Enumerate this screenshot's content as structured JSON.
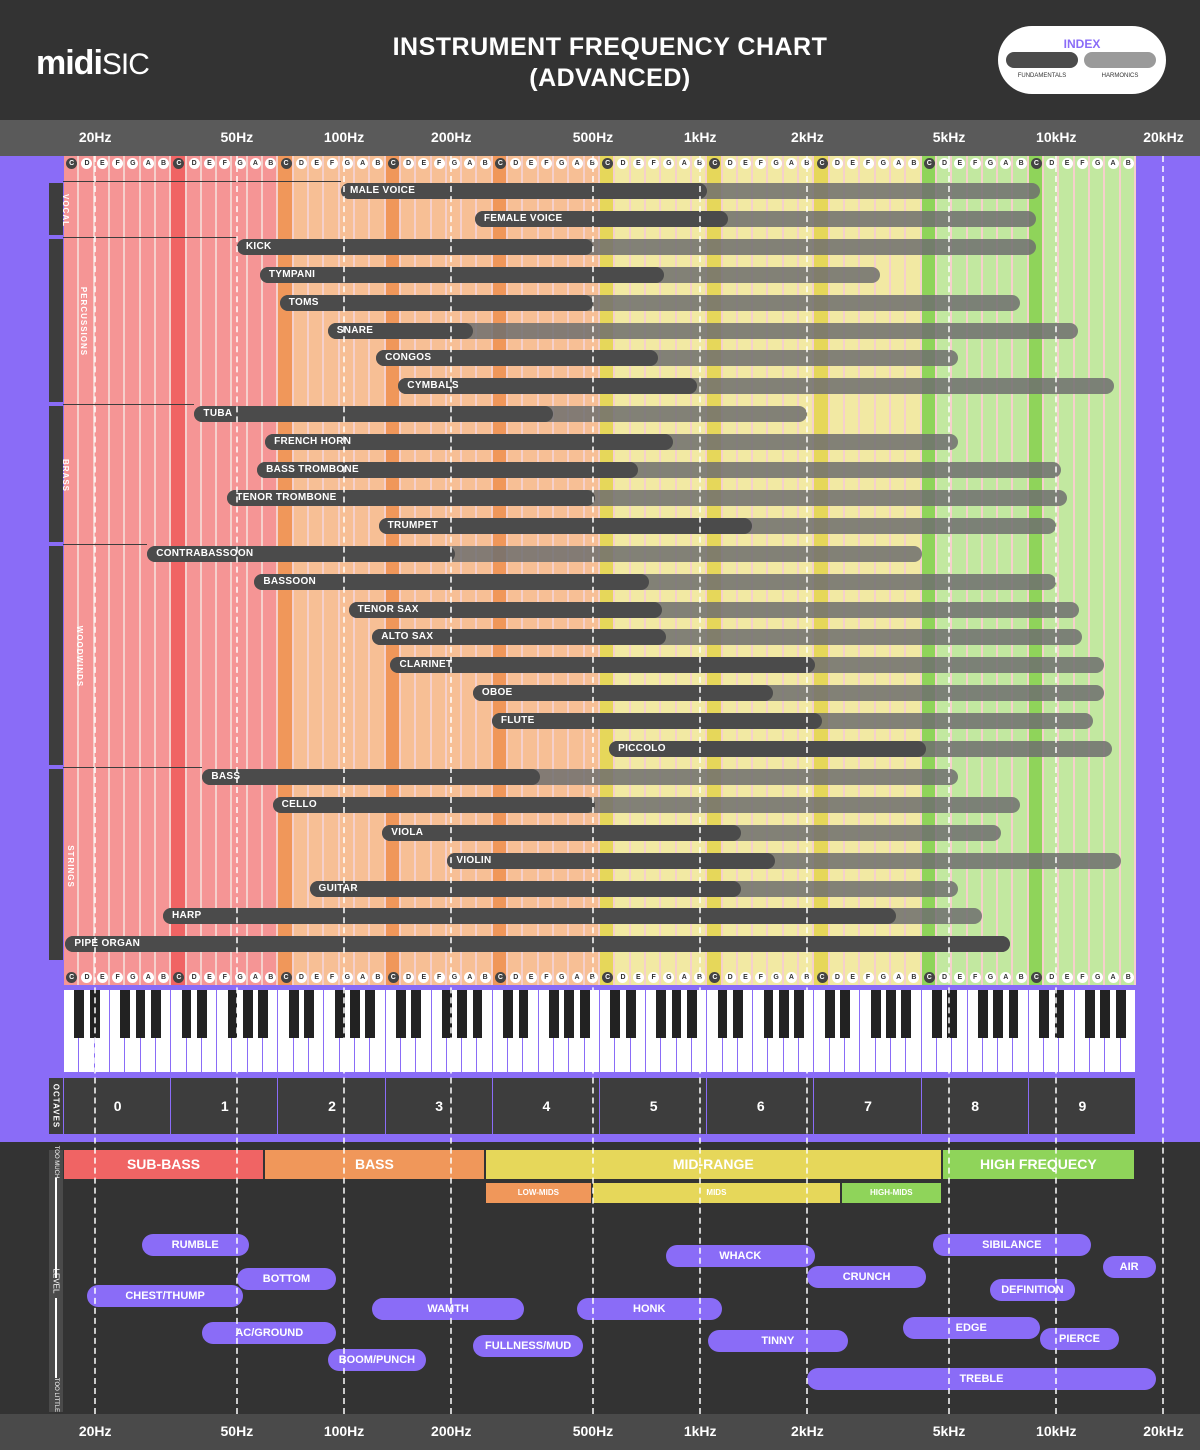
{
  "header": {
    "logo_bold": "midi",
    "logo_light": "SIC",
    "title_line1": "INSTRUMENT FREQUENCY CHART",
    "title_line2": "(ADVANCED)"
  },
  "index": {
    "title": "INDEX",
    "fund_label": "FUNDAMENTALS",
    "harm_label": "HARMONICS",
    "fund_color": "#4b4b4b",
    "harm_color": "#9a9a9a"
  },
  "colors": {
    "accent": "#8a6cf7",
    "sub_bass": "#f06464",
    "bass": "#f0975a",
    "mid_range": "#e6d75a",
    "high": "#8fd45a"
  },
  "octaves_label": "OCTAVES",
  "chart_data": {
    "type": "range-bar",
    "title": "INSTRUMENT FREQUENCY CHART (ADVANCED)",
    "xscale": "log",
    "xunit": "Hz",
    "xlim": [
      16.35,
      16744
    ],
    "ticks": [
      {
        "label": "20Hz",
        "v": 20
      },
      {
        "label": "50Hz",
        "v": 50
      },
      {
        "label": "100Hz",
        "v": 100
      },
      {
        "label": "200Hz",
        "v": 200
      },
      {
        "label": "500Hz",
        "v": 500
      },
      {
        "label": "1kHz",
        "v": 1000
      },
      {
        "label": "2kHz",
        "v": 2000
      },
      {
        "label": "5kHz",
        "v": 5000
      },
      {
        "label": "10kHz",
        "v": 10000
      },
      {
        "label": "20kHz",
        "v": 20000
      }
    ],
    "note_names": [
      "C",
      "D",
      "E",
      "F",
      "G",
      "A",
      "B"
    ],
    "octaves": [
      "0",
      "1",
      "2",
      "3",
      "4",
      "5",
      "6",
      "7",
      "8",
      "9"
    ],
    "categories": [
      {
        "name": "VOCAL",
        "instruments": [
          {
            "name": "MALE VOICE",
            "fund": [
              98,
              1047
            ],
            "harm_end": 9000
          },
          {
            "name": "FEMALE VOICE",
            "fund": [
              233,
              1200
            ],
            "harm_end": 8800
          }
        ]
      },
      {
        "name": "PERCUSSIONS",
        "instruments": [
          {
            "name": "KICK",
            "fund": [
              50,
              500
            ],
            "harm_end": 8800
          },
          {
            "name": "TYMPANI",
            "fund": [
              58,
              790
            ],
            "harm_end": 3200
          },
          {
            "name": "TOMS",
            "fund": [
              66,
              500
            ],
            "harm_end": 7900
          },
          {
            "name": "SNARE",
            "fund": [
              90,
              230
            ],
            "harm_end": 11500
          },
          {
            "name": "CONGOS",
            "fund": [
              123,
              760
            ],
            "harm_end": 5300
          },
          {
            "name": "CYMBALS",
            "fund": [
              142,
              980
            ],
            "harm_end": 14500
          }
        ]
      },
      {
        "name": "BRASS",
        "instruments": [
          {
            "name": "TUBA",
            "fund": [
              38,
              385
            ],
            "harm_end": 2000
          },
          {
            "name": "FRENCH HORN",
            "fund": [
              60,
              840
            ],
            "harm_end": 5300
          },
          {
            "name": "BASS TROMBONE",
            "fund": [
              57,
              670
            ],
            "harm_end": 10300
          },
          {
            "name": "TENOR TROMBONE",
            "fund": [
              47,
              505
            ],
            "harm_end": 10700
          },
          {
            "name": "TRUMPET",
            "fund": [
              125,
              1400
            ],
            "harm_end": 10000
          }
        ]
      },
      {
        "name": "WOODWINDS",
        "instruments": [
          {
            "name": "CONTRABASSOON",
            "fund": [
              28,
              205
            ],
            "harm_end": 4200
          },
          {
            "name": "BASSOON",
            "fund": [
              56,
              720
            ],
            "harm_end": 10000
          },
          {
            "name": "TENOR SAX",
            "fund": [
              103,
              780
            ],
            "harm_end": 11600
          },
          {
            "name": "ALTO SAX",
            "fund": [
              120,
              800
            ],
            "harm_end": 11800
          },
          {
            "name": "CLARINET",
            "fund": [
              135,
              2100
            ],
            "harm_end": 13600
          },
          {
            "name": "OBOE",
            "fund": [
              230,
              1600
            ],
            "harm_end": 13600
          },
          {
            "name": "FLUTE",
            "fund": [
              260,
              2200
            ],
            "harm_end": 12700
          },
          {
            "name": "PICCOLO",
            "fund": [
              555,
              4300
            ],
            "harm_end": 14300
          }
        ]
      },
      {
        "name": "STRINGS",
        "instruments": [
          {
            "name": "BASS",
            "fund": [
              40,
              355
            ],
            "harm_end": 5300
          },
          {
            "name": "CELLO",
            "fund": [
              63,
              505
            ],
            "harm_end": 7900
          },
          {
            "name": "VIOLA",
            "fund": [
              128,
              1300
            ],
            "harm_end": 7000
          },
          {
            "name": "VIOLIN",
            "fund": [
              195,
              1620
            ],
            "harm_end": 15200
          },
          {
            "name": "GUITAR",
            "fund": [
              80,
              1300
            ],
            "harm_end": 5300
          },
          {
            "name": "HARP",
            "fund": [
              31,
              3550
            ],
            "harm_end": 6200
          },
          {
            "name": "PIPE ORGAN",
            "fund": [
              16.5,
              7400
            ],
            "harm_end": 7400
          }
        ]
      }
    ],
    "bands": [
      {
        "name": "SUB-BASS",
        "range": [
          16.35,
          60
        ]
      },
      {
        "name": "BASS",
        "range": [
          60,
          250
        ]
      },
      {
        "name": "MID-RANGE",
        "range": [
          250,
          4800
        ]
      },
      {
        "name": "HIGH FREQUECY",
        "range": [
          4800,
          16744
        ]
      }
    ],
    "sub_bands": [
      {
        "name": "LOW-MIDS",
        "range": [
          250,
          500
        ]
      },
      {
        "name": "MIDS",
        "range": [
          500,
          2500
        ]
      },
      {
        "name": "HIGH-MIDS",
        "range": [
          2500,
          4800
        ]
      }
    ],
    "level_axis": {
      "top": "TOO MUCH",
      "middle": "LEVEL",
      "bottom": "TOO LITTLE"
    },
    "descriptors": [
      {
        "label": "RUMBLE",
        "range": [
          27,
          54
        ],
        "level": 0.1
      },
      {
        "label": "CHEST/THUMP",
        "range": [
          19,
          52
        ],
        "level": 0.42
      },
      {
        "label": "BOTTOM",
        "range": [
          50,
          95
        ],
        "level": 0.31
      },
      {
        "label": "AC/GROUND",
        "range": [
          40,
          95
        ],
        "level": 0.65
      },
      {
        "label": "BOOM/PUNCH",
        "range": [
          90,
          170
        ],
        "level": 0.82
      },
      {
        "label": "WAMTH",
        "range": [
          120,
          320
        ],
        "level": 0.5
      },
      {
        "label": "FULLNESS/MUD",
        "range": [
          230,
          470
        ],
        "level": 0.73
      },
      {
        "label": "HONK",
        "range": [
          450,
          1150
        ],
        "level": 0.5
      },
      {
        "label": "WHACK",
        "range": [
          800,
          2100
        ],
        "level": 0.17
      },
      {
        "label": "TINNY",
        "range": [
          1050,
          2600
        ],
        "level": 0.7
      },
      {
        "label": "CRUNCH",
        "range": [
          2000,
          4300
        ],
        "level": 0.3
      },
      {
        "label": "EDGE",
        "range": [
          3700,
          9000
        ],
        "level": 0.62
      },
      {
        "label": "SIBILANCE",
        "range": [
          4500,
          12500
        ],
        "level": 0.1
      },
      {
        "label": "DEFINITION",
        "range": [
          6500,
          11300
        ],
        "level": 0.38
      },
      {
        "label": "PIERCE",
        "range": [
          9000,
          15000
        ],
        "level": 0.69
      },
      {
        "label": "AIR",
        "range": [
          13500,
          19000
        ],
        "level": 0.24
      },
      {
        "label": "TREBLE",
        "range": [
          2000,
          19000
        ],
        "level": 0.94
      }
    ]
  }
}
